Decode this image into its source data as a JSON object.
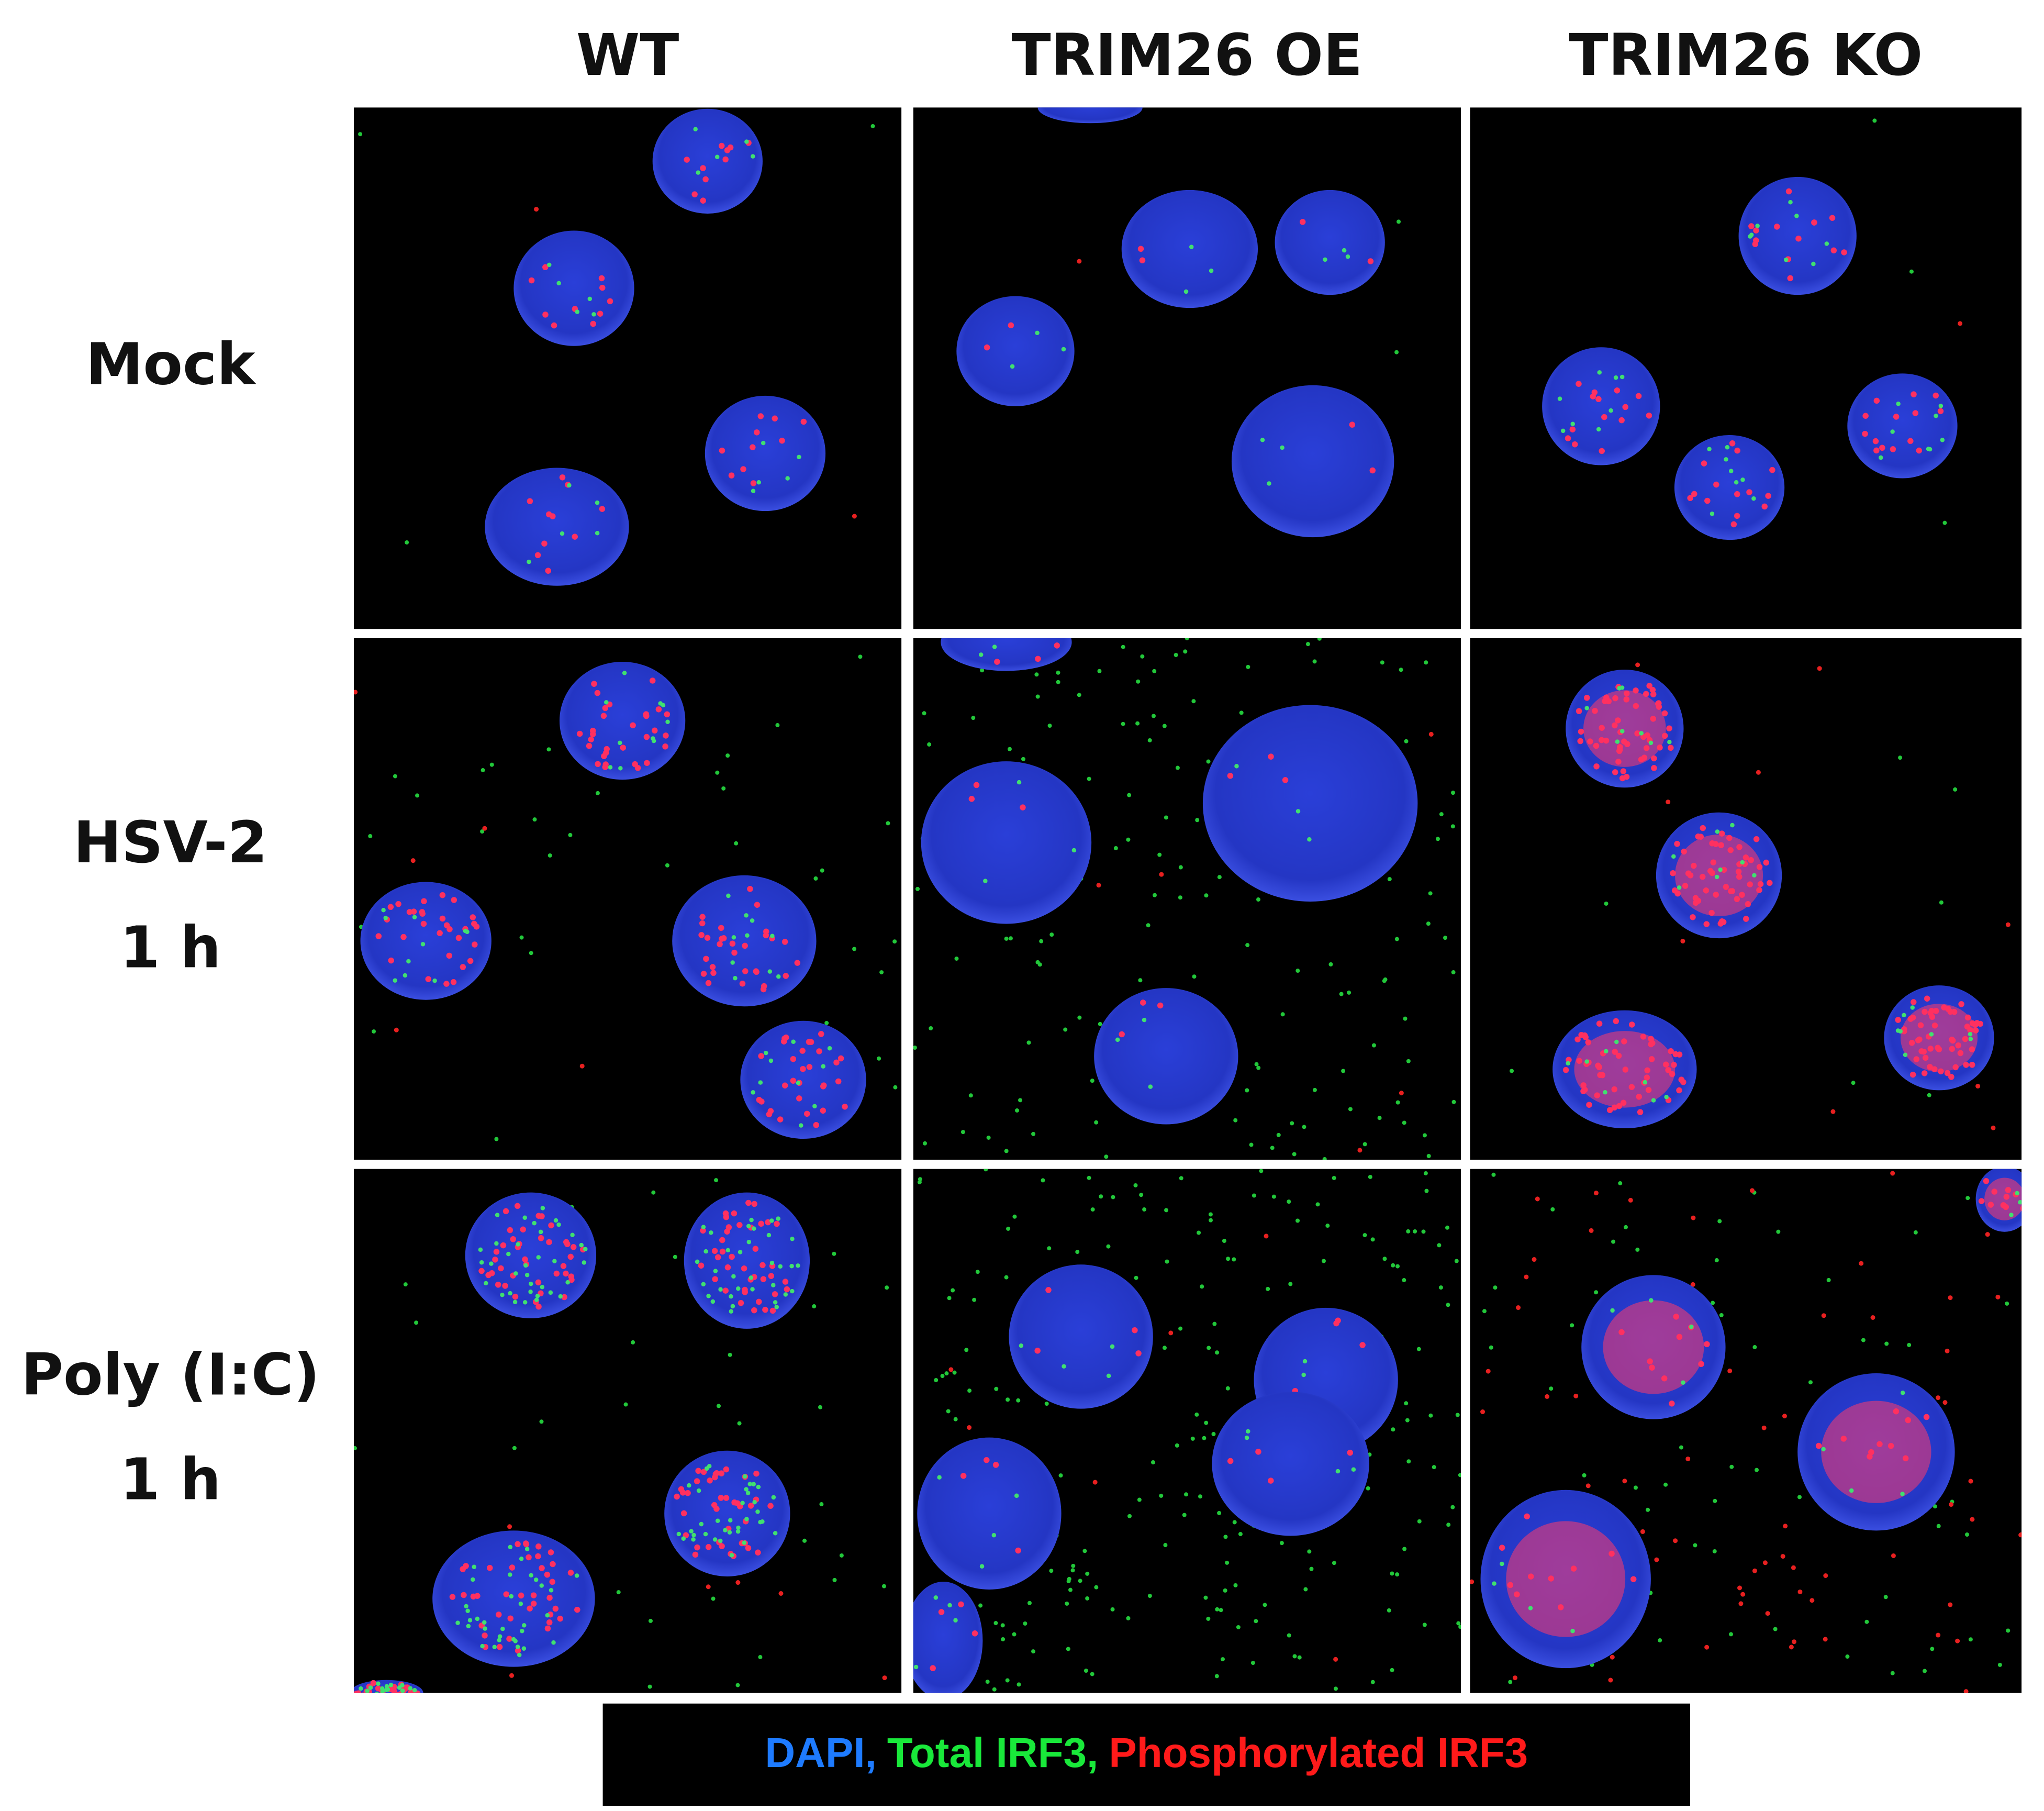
{
  "columns": [
    "WT",
    "TRIM26 OE",
    "TRIM26 KO"
  ],
  "rows": [
    {
      "lines": [
        "Mock"
      ]
    },
    {
      "lines": [
        "HSV-2",
        "1 h"
      ]
    },
    {
      "lines": [
        "Poly (I:C)",
        "1 h"
      ]
    }
  ],
  "legend": {
    "items": [
      "DAPI,",
      "Total IRF3,",
      "Phosphorylated IRF3"
    ]
  }
}
